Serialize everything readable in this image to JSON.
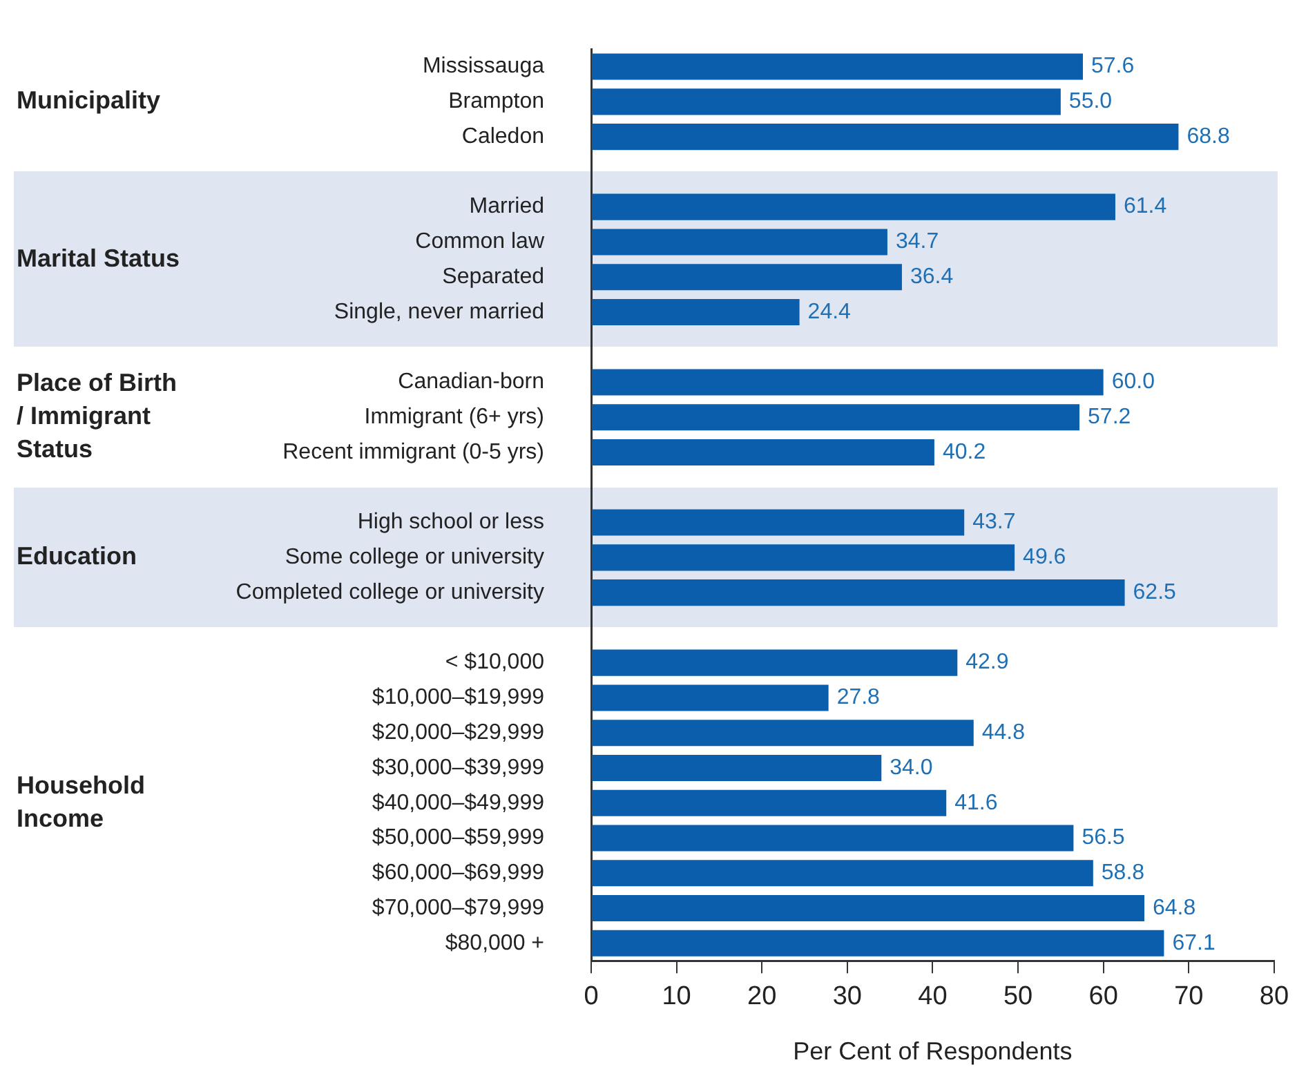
{
  "chart_data": {
    "type": "bar",
    "orientation": "horizontal",
    "xlabel": "Per Cent of Respondents",
    "categories": [
      "Mississauga",
      "Brampton",
      "Caledon",
      null,
      "Married",
      "Common law",
      "Separated",
      "Single, never married",
      null,
      "Canadian-born",
      "Immigrant (6+ yrs)",
      "Recent immigrant (0-5 yrs)",
      null,
      "High school or less",
      "Some college or university",
      "Completed college or university",
      null,
      "< $10,000",
      "$10,000–$19,999",
      "$20,000–$29,999",
      "$30,000–$39,999",
      "$40,000–$49,999",
      "$50,000–$59,999",
      "$60,000–$69,999",
      "$70,000–$79,999",
      "$80,000 +"
    ],
    "values": [
      57.6,
      55.0,
      68.8,
      null,
      61.4,
      34.7,
      36.4,
      24.4,
      null,
      60.0,
      57.2,
      40.2,
      null,
      43.7,
      49.6,
      62.5,
      null,
      42.9,
      27.8,
      44.8,
      34.0,
      41.6,
      56.5,
      58.8,
      64.8,
      67.1
    ],
    "value_labels": [
      "57.6",
      "55.0",
      "68.8",
      null,
      "61.4",
      "34.7",
      "36.4",
      "24.4",
      null,
      "60.0",
      "57.2",
      "40.2",
      null,
      "43.7",
      "49.6",
      "62.5",
      null,
      "42.9",
      "27.8",
      "44.8",
      "34.0",
      "41.6",
      "56.5",
      "58.8",
      "64.8",
      "67.1"
    ],
    "color": "#0a5eab",
    "xlim": [
      0,
      80
    ],
    "xticks": [
      0,
      10,
      20,
      30,
      40,
      50,
      60,
      70,
      80
    ],
    "grid": false,
    "legend": false,
    "annotations": [
      "Municipality",
      "Marital Status",
      "Place of Birth / Immigrant Status",
      "Education",
      "Household Income"
    ]
  }
}
